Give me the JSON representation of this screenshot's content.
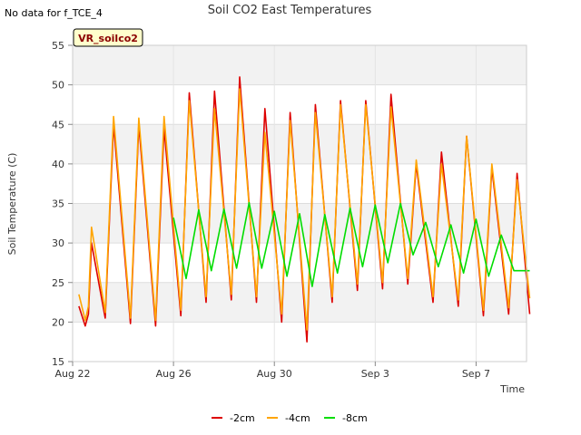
{
  "chart_data": {
    "type": "line",
    "title": "Soil CO2 East Temperatures",
    "note": "No data for f_TCE_4",
    "badge": "VR_soilco2",
    "xlabel": "Time",
    "ylabel": "Soil Temperature (C)",
    "xlim": [
      "2022-08-22",
      "2022-09-09"
    ],
    "ylim": [
      15,
      55
    ],
    "yticks": [
      15,
      20,
      25,
      30,
      35,
      40,
      45,
      50,
      55
    ],
    "xticks": [
      {
        "label": "Aug 22",
        "date": "2022-08-22"
      },
      {
        "label": "Aug 26",
        "date": "2022-08-26"
      },
      {
        "label": "Aug 30",
        "date": "2022-08-30"
      },
      {
        "label": "Sep 3",
        "date": "2022-09-03"
      },
      {
        "label": "Sep 7",
        "date": "2022-09-07"
      }
    ],
    "grid": true,
    "legend_position": "bottom",
    "series": [
      {
        "name": "-2cm",
        "color": "#dd0000",
        "time": [
          "2022-08-22 06:00",
          "2022-08-22 12:00",
          "2022-08-22 15:00",
          "2022-08-22 18:00",
          "2022-08-23 07:00",
          "2022-08-23 15:00",
          "2022-08-24 07:00",
          "2022-08-24 15:00",
          "2022-08-25 07:00",
          "2022-08-25 15:00",
          "2022-08-26 07:00",
          "2022-08-26 15:00",
          "2022-08-27 07:00",
          "2022-08-27 15:00",
          "2022-08-28 07:00",
          "2022-08-28 15:00",
          "2022-08-29 07:00",
          "2022-08-29 15:00",
          "2022-08-30 07:00",
          "2022-08-30 15:00",
          "2022-08-31 07:00",
          "2022-08-31 15:00",
          "2022-09-01 07:00",
          "2022-09-01 15:00",
          "2022-09-02 07:00",
          "2022-09-02 15:00",
          "2022-09-03 07:00",
          "2022-09-03 15:00",
          "2022-09-04 07:00",
          "2022-09-04 15:00",
          "2022-09-05 07:00",
          "2022-09-05 15:00",
          "2022-09-06 07:00",
          "2022-09-06 15:00",
          "2022-09-07 07:00",
          "2022-09-07 15:00",
          "2022-09-08 07:00",
          "2022-09-08 15:00",
          "2022-09-09 03:00"
        ],
        "values": [
          22,
          19.5,
          21,
          30,
          20.5,
          45,
          19.8,
          45,
          19.5,
          44.5,
          20.8,
          49,
          22.5,
          49.2,
          22.8,
          51,
          22.5,
          47,
          20,
          46.5,
          17.5,
          47.5,
          22.5,
          48,
          24,
          48,
          24.2,
          48.8,
          24.8,
          40,
          22.5,
          41.5,
          22,
          43.5,
          20.8,
          39.5,
          21,
          38.8,
          21
        ]
      },
      {
        "name": "-4cm",
        "color": "#ffa500",
        "time": [
          "2022-08-22 06:00",
          "2022-08-22 12:00",
          "2022-08-22 15:00",
          "2022-08-22 18:00",
          "2022-08-23 07:00",
          "2022-08-23 15:00",
          "2022-08-24 07:00",
          "2022-08-24 15:00",
          "2022-08-25 07:00",
          "2022-08-25 15:00",
          "2022-08-26 07:00",
          "2022-08-26 15:00",
          "2022-08-27 07:00",
          "2022-08-27 15:00",
          "2022-08-28 07:00",
          "2022-08-28 15:00",
          "2022-08-29 07:00",
          "2022-08-29 15:00",
          "2022-08-30 07:00",
          "2022-08-30 15:00",
          "2022-08-31 07:00",
          "2022-08-31 15:00",
          "2022-09-01 07:00",
          "2022-09-01 15:00",
          "2022-09-02 07:00",
          "2022-09-02 15:00",
          "2022-09-03 07:00",
          "2022-09-03 15:00",
          "2022-09-04 07:00",
          "2022-09-04 15:00",
          "2022-09-05 07:00",
          "2022-09-05 15:00",
          "2022-09-06 07:00",
          "2022-09-06 15:00",
          "2022-09-07 07:00",
          "2022-09-07 15:00",
          "2022-09-08 07:00",
          "2022-09-08 15:00",
          "2022-09-09 03:00"
        ],
        "values": [
          23.5,
          20.2,
          22,
          32,
          21.2,
          46,
          20.5,
          45.8,
          20.2,
          46,
          21.5,
          48,
          23.2,
          47,
          23.5,
          49.5,
          23.2,
          44,
          21,
          45.5,
          19,
          46.5,
          23.2,
          47.5,
          24.8,
          47.5,
          25,
          47.2,
          25.5,
          40.5,
          23.2,
          40,
          22.8,
          43.5,
          21.5,
          40,
          21.8,
          38,
          23
        ]
      },
      {
        "name": "-8cm",
        "color": "#00dd00",
        "time": [
          "2022-08-26 00:00",
          "2022-08-26 12:00",
          "2022-08-27 00:00",
          "2022-08-27 12:00",
          "2022-08-28 00:00",
          "2022-08-28 12:00",
          "2022-08-29 00:00",
          "2022-08-29 12:00",
          "2022-08-30 00:00",
          "2022-08-30 12:00",
          "2022-08-31 00:00",
          "2022-08-31 12:00",
          "2022-09-01 00:00",
          "2022-09-01 12:00",
          "2022-09-02 00:00",
          "2022-09-02 12:00",
          "2022-09-03 00:00",
          "2022-09-03 12:00",
          "2022-09-04 00:00",
          "2022-09-04 12:00",
          "2022-09-05 00:00",
          "2022-09-05 12:00",
          "2022-09-06 00:00",
          "2022-09-06 12:00",
          "2022-09-07 00:00",
          "2022-09-07 12:00",
          "2022-09-08 00:00",
          "2022-09-08 12:00",
          "2022-09-09 03:00"
        ],
        "values": [
          33.2,
          25.5,
          34.2,
          26.5,
          34.3,
          26.8,
          35.1,
          26.8,
          34,
          25.8,
          33.7,
          24.5,
          33.6,
          26.2,
          34.4,
          27,
          34.8,
          27.5,
          35,
          28.5,
          32.6,
          27,
          32.3,
          26.2,
          33,
          25.8,
          31,
          26.5,
          26.5
        ]
      }
    ]
  }
}
